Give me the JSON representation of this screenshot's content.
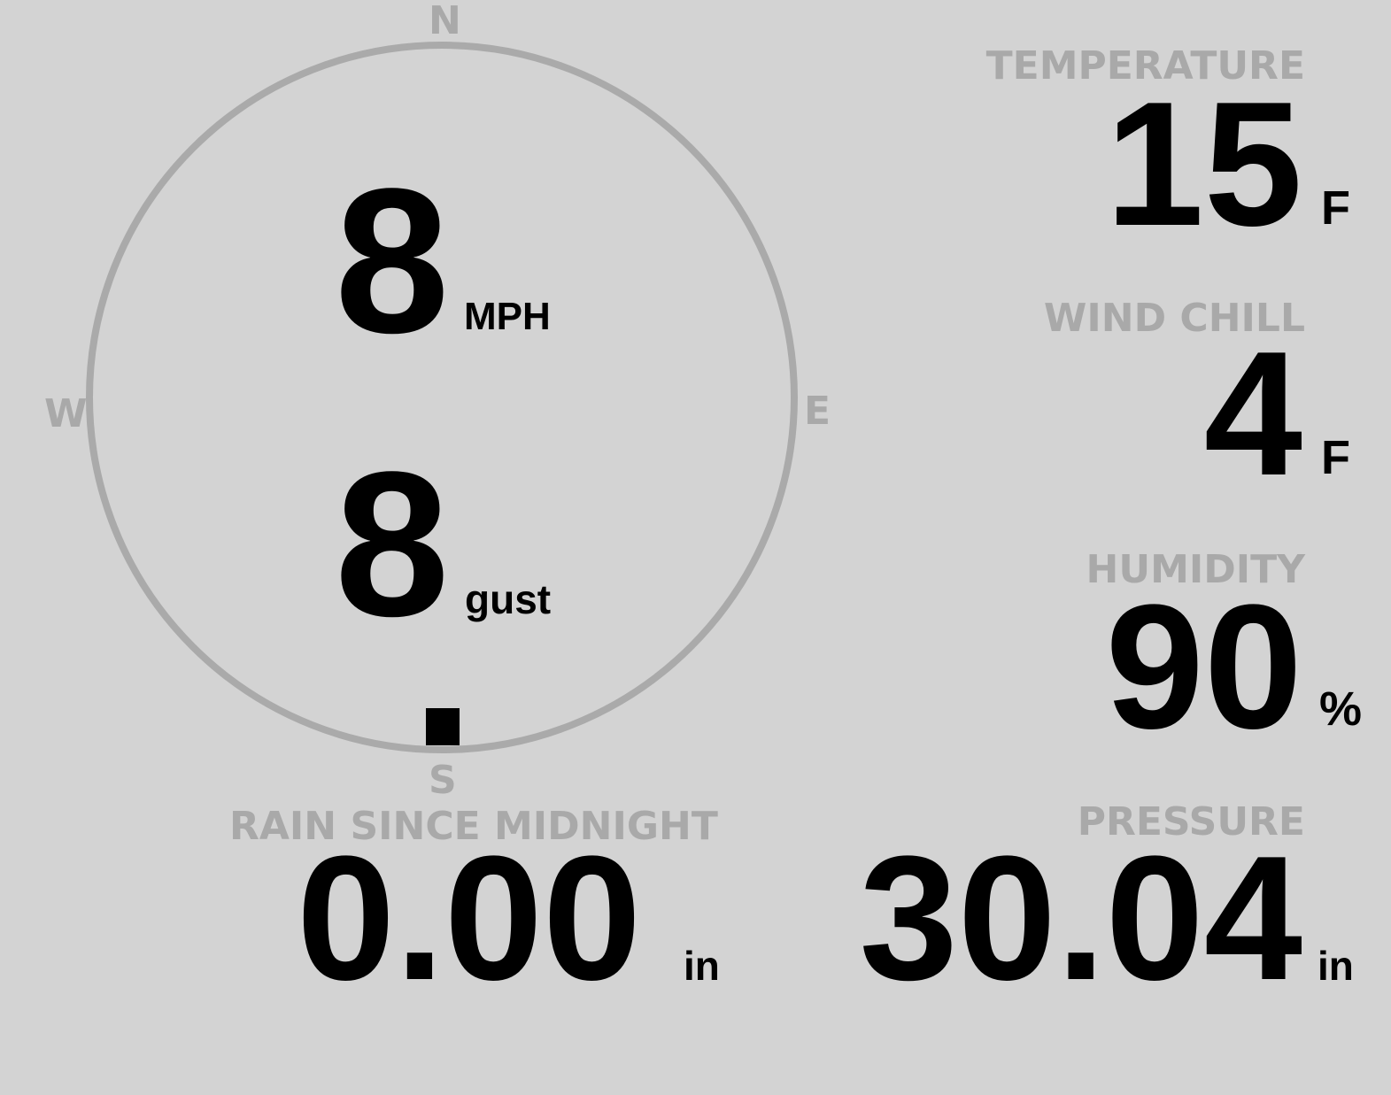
{
  "wind": {
    "speed": "8",
    "speed_unit": "MPH",
    "gust": "8",
    "gust_unit": "gust",
    "direction_deg": 180,
    "compass": {
      "n": "N",
      "e": "E",
      "s": "S",
      "w": "W"
    }
  },
  "temperature": {
    "label": "TEMPERATURE",
    "value": "15",
    "unit": "F"
  },
  "wind_chill": {
    "label": "WIND CHILL",
    "value": "4",
    "unit": "F"
  },
  "humidity": {
    "label": "HUMIDITY",
    "value": "90",
    "unit": "%"
  },
  "rain": {
    "label": "RAIN SINCE MIDNIGHT",
    "value": "0.00",
    "unit": "in"
  },
  "pressure": {
    "label": "PRESSURE",
    "value": "30.04",
    "unit": "in"
  },
  "colors": {
    "background": "#d3d3d3",
    "label": "#a9a9a9",
    "value": "#000000",
    "dial": "#aaaaaa"
  }
}
